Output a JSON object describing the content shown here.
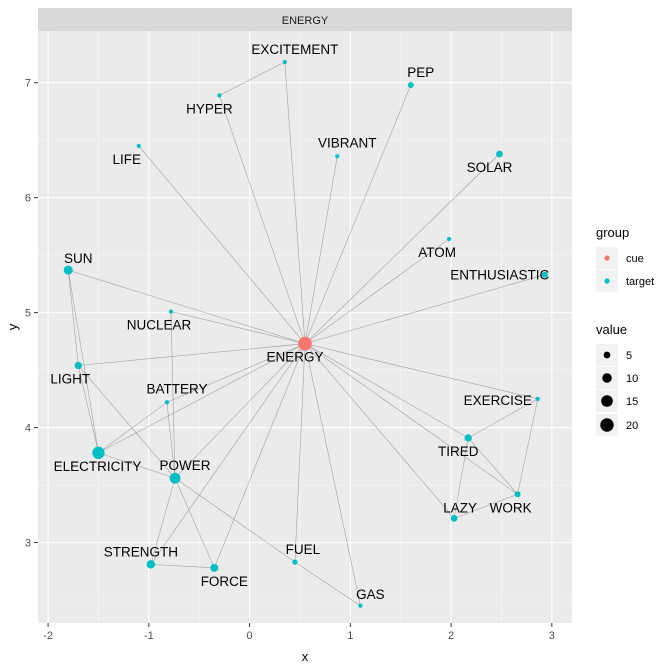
{
  "chart_data": {
    "type": "network",
    "facet_title": "ENERGY",
    "xlabel": "x",
    "ylabel": "y",
    "xlim": [
      -2.1,
      3.2
    ],
    "ylim": [
      2.3,
      7.45
    ],
    "x_ticks": [
      -2,
      -1,
      0,
      1,
      2,
      3
    ],
    "y_ticks": [
      3,
      4,
      5,
      6,
      7
    ],
    "x_tick_labels": [
      "-2",
      "-1",
      "0",
      "1",
      "2",
      "3"
    ],
    "y_tick_labels": [
      "3",
      "4",
      "5",
      "6",
      "7"
    ],
    "colors": {
      "cue": "#f8766d",
      "target": "#00bfc4"
    },
    "nodes": [
      {
        "id": "ENERGY",
        "label": "ENERGY",
        "x": 0.55,
        "y": 4.73,
        "group": "cue",
        "value": 21
      },
      {
        "id": "EXCITEMENT",
        "label": "EXCITEMENT",
        "x": 0.35,
        "y": 7.18,
        "group": "target",
        "value": 2
      },
      {
        "id": "PEP",
        "label": "PEP",
        "x": 1.6,
        "y": 6.98,
        "group": "target",
        "value": 4
      },
      {
        "id": "HYPER",
        "label": "HYPER",
        "x": -0.3,
        "y": 6.89,
        "group": "target",
        "value": 2
      },
      {
        "id": "LIFE",
        "label": "LIFE",
        "x": -1.1,
        "y": 6.45,
        "group": "target",
        "value": 2
      },
      {
        "id": "VIBRANT",
        "label": "VIBRANT",
        "x": 0.87,
        "y": 6.36,
        "group": "target",
        "value": 2
      },
      {
        "id": "SOLAR",
        "label": "SOLAR",
        "x": 2.48,
        "y": 6.38,
        "group": "target",
        "value": 5
      },
      {
        "id": "ATOM",
        "label": "ATOM",
        "x": 1.98,
        "y": 5.64,
        "group": "target",
        "value": 2
      },
      {
        "id": "SUN",
        "label": "SUN",
        "x": -1.8,
        "y": 5.37,
        "group": "target",
        "value": 9
      },
      {
        "id": "ENTHUSIASTIC",
        "label": "ENTHUSIASTIC",
        "x": 2.93,
        "y": 5.33,
        "group": "target",
        "value": 4
      },
      {
        "id": "NUCLEAR",
        "label": "NUCLEAR",
        "x": -0.78,
        "y": 5.01,
        "group": "target",
        "value": 2
      },
      {
        "id": "LIGHT",
        "label": "LIGHT",
        "x": -1.7,
        "y": 4.54,
        "group": "target",
        "value": 6
      },
      {
        "id": "BATTERY",
        "label": "BATTERY",
        "x": -0.82,
        "y": 4.22,
        "group": "target",
        "value": 2
      },
      {
        "id": "EXERCISE",
        "label": "EXERCISE",
        "x": 2.86,
        "y": 4.25,
        "group": "target",
        "value": 2
      },
      {
        "id": "TIRED",
        "label": "TIRED",
        "x": 2.17,
        "y": 3.91,
        "group": "target",
        "value": 6
      },
      {
        "id": "ELECTRICITY",
        "label": "ELECTRICITY",
        "x": -1.5,
        "y": 3.78,
        "group": "target",
        "value": 17
      },
      {
        "id": "POWER",
        "label": "POWER",
        "x": -0.74,
        "y": 3.56,
        "group": "target",
        "value": 13
      },
      {
        "id": "WORK",
        "label": "WORK",
        "x": 2.66,
        "y": 3.42,
        "group": "target",
        "value": 4
      },
      {
        "id": "LAZY",
        "label": "LAZY",
        "x": 2.03,
        "y": 3.21,
        "group": "target",
        "value": 5
      },
      {
        "id": "STRENGTH",
        "label": "STRENGTH",
        "x": -0.98,
        "y": 2.81,
        "group": "target",
        "value": 8
      },
      {
        "id": "FORCE",
        "label": "FORCE",
        "x": -0.35,
        "y": 2.78,
        "group": "target",
        "value": 7
      },
      {
        "id": "FUEL",
        "label": "FUEL",
        "x": 0.45,
        "y": 2.83,
        "group": "target",
        "value": 3
      },
      {
        "id": "GAS",
        "label": "GAS",
        "x": 1.1,
        "y": 2.45,
        "group": "target",
        "value": 2
      }
    ],
    "edges": [
      [
        "ENERGY",
        "EXCITEMENT"
      ],
      [
        "ENERGY",
        "PEP"
      ],
      [
        "ENERGY",
        "HYPER"
      ],
      [
        "ENERGY",
        "LIFE"
      ],
      [
        "ENERGY",
        "VIBRANT"
      ],
      [
        "ENERGY",
        "SOLAR"
      ],
      [
        "ENERGY",
        "ATOM"
      ],
      [
        "ENERGY",
        "SUN"
      ],
      [
        "ENERGY",
        "ENTHUSIASTIC"
      ],
      [
        "ENERGY",
        "NUCLEAR"
      ],
      [
        "ENERGY",
        "LIGHT"
      ],
      [
        "ENERGY",
        "BATTERY"
      ],
      [
        "ENERGY",
        "EXERCISE"
      ],
      [
        "ENERGY",
        "TIRED"
      ],
      [
        "ENERGY",
        "ELECTRICITY"
      ],
      [
        "ENERGY",
        "POWER"
      ],
      [
        "ENERGY",
        "WORK"
      ],
      [
        "ENERGY",
        "LAZY"
      ],
      [
        "ENERGY",
        "STRENGTH"
      ],
      [
        "ENERGY",
        "FORCE"
      ],
      [
        "ENERGY",
        "FUEL"
      ],
      [
        "ENERGY",
        "GAS"
      ],
      [
        "HYPER",
        "EXCITEMENT"
      ],
      [
        "SUN",
        "LIGHT"
      ],
      [
        "SUN",
        "ELECTRICITY"
      ],
      [
        "LIGHT",
        "ELECTRICITY"
      ],
      [
        "LIGHT",
        "POWER"
      ],
      [
        "NUCLEAR",
        "POWER"
      ],
      [
        "BATTERY",
        "ELECTRICITY"
      ],
      [
        "BATTERY",
        "POWER"
      ],
      [
        "ELECTRICITY",
        "POWER"
      ],
      [
        "POWER",
        "STRENGTH"
      ],
      [
        "POWER",
        "FORCE"
      ],
      [
        "POWER",
        "FUEL"
      ],
      [
        "STRENGTH",
        "FORCE"
      ],
      [
        "FUEL",
        "GAS"
      ],
      [
        "EXERCISE",
        "TIRED"
      ],
      [
        "EXERCISE",
        "WORK"
      ],
      [
        "TIRED",
        "WORK"
      ],
      [
        "TIRED",
        "LAZY"
      ],
      [
        "WORK",
        "LAZY"
      ]
    ],
    "legend_group": {
      "title": "group",
      "items": [
        "cue",
        "target"
      ]
    },
    "legend_size": {
      "title": "value",
      "items": [
        5,
        10,
        15,
        20
      ],
      "labels": [
        "5",
        "10",
        "15",
        "20"
      ]
    },
    "legend_position": "right"
  }
}
